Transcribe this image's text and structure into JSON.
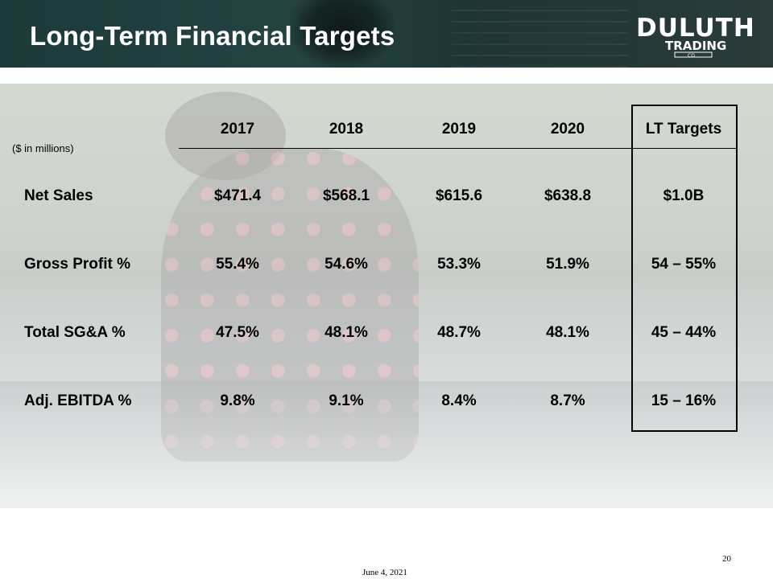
{
  "slide": {
    "title": "Long-Term Financial Targets",
    "units_note": "($ in millions)",
    "page_number": "20",
    "date": "June 4, 2021"
  },
  "logo": {
    "line1": "DULUTH",
    "line2": "TRADING",
    "line3": "CO"
  },
  "table": {
    "columns": [
      "2017",
      "2018",
      "2019",
      "2020",
      "LT Targets"
    ],
    "rows": [
      {
        "label": "Net Sales",
        "values": [
          "$471.4",
          "$568.1",
          "$615.6",
          "$638.8",
          "$1.0B"
        ]
      },
      {
        "label": "Gross Profit %",
        "values": [
          "55.4%",
          "54.6%",
          "53.3%",
          "51.9%",
          "54 – 55%"
        ]
      },
      {
        "label": "Total SG&A %",
        "values": [
          "47.5%",
          "48.1%",
          "48.7%",
          "48.1%",
          "45 – 44%"
        ]
      },
      {
        "label": "Adj. EBITDA %",
        "values": [
          "9.8%",
          "9.1%",
          "8.4%",
          "8.7%",
          "15 – 16%"
        ]
      }
    ]
  },
  "colors": {
    "header_bg": "#244341",
    "text": "#000000",
    "title_text": "#ffffff"
  }
}
